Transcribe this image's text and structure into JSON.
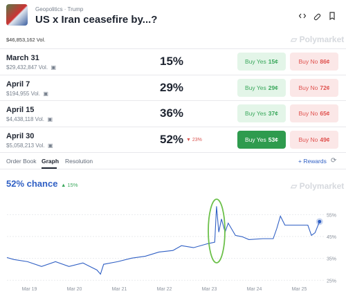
{
  "header": {
    "category": "Geopolitics",
    "subcategory": "Trump",
    "title": "US x Iran ceasefire by...?",
    "volume": "$46,853,162 Vol.",
    "brand": "Polymarket"
  },
  "markets": [
    {
      "label": "March 31",
      "volume": "$29,432,847 Vol.",
      "chance": "15%",
      "buy_yes": "Buy Yes",
      "yes_price": "15¢",
      "buy_no": "Buy No",
      "no_price": "86¢"
    },
    {
      "label": "April 7",
      "volume": "$194,955 Vol.",
      "chance": "29%",
      "buy_yes": "Buy Yes",
      "yes_price": "29¢",
      "buy_no": "Buy No",
      "no_price": "72¢"
    },
    {
      "label": "April 15",
      "volume": "$4,438,118 Vol.",
      "chance": "36%",
      "buy_yes": "Buy Yes",
      "yes_price": "37¢",
      "buy_no": "Buy No",
      "no_price": "65¢"
    },
    {
      "label": "April 30",
      "volume": "$5,058,213 Vol.",
      "chance": "52%",
      "change": "▼ 23%",
      "buy_yes": "Buy Yes",
      "yes_price": "53¢",
      "buy_no": "Buy No",
      "no_price": "49¢",
      "selected": true
    }
  ],
  "tabs": [
    "Order Book",
    "Graph",
    "Resolution"
  ],
  "active_tab": 1,
  "rewards": "+ Rewards",
  "chart_data": {
    "type": "line",
    "title": "52% chance",
    "change": "▲ 15%",
    "brand": "Polymarket",
    "x": [
      18.5,
      18.65,
      18.96,
      19.27,
      19.58,
      19.88,
      20.19,
      20.5,
      20.58,
      20.65,
      20.96,
      21.27,
      21.58,
      21.88,
      22.19,
      22.38,
      22.65,
      22.96,
      23.12,
      23.16,
      23.21,
      23.27,
      23.35,
      23.42,
      23.58,
      23.73,
      23.88,
      24.19,
      24.42,
      24.5,
      24.58,
      24.68,
      24.96,
      25.19,
      25.27,
      25.35,
      25.45
    ],
    "series": [
      {
        "name": "April 30",
        "color": "#2f5fc4",
        "values": [
          35.4,
          34.5,
          33.5,
          31.3,
          33.5,
          31.3,
          32.9,
          29.7,
          27.8,
          32.3,
          33.5,
          35.1,
          36.0,
          37.9,
          38.6,
          40.8,
          39.9,
          41.7,
          42.4,
          58.8,
          47.0,
          53.0,
          47.0,
          51.1,
          45.5,
          44.9,
          43.6,
          44.0,
          44.0,
          48.7,
          54.3,
          50.2,
          50.2,
          50.2,
          45.5,
          46.7,
          51.8
        ]
      }
    ],
    "xlim": [
      18.5,
      25.5
    ],
    "xticks": [
      {
        "value": 19,
        "label": "Mar 19"
      },
      {
        "value": 20,
        "label": "Mar 20"
      },
      {
        "value": 21,
        "label": "Mar 21"
      },
      {
        "value": 22,
        "label": "Mar 22"
      },
      {
        "value": 23,
        "label": "Mar 23"
      },
      {
        "value": 24,
        "label": "Mar 24"
      },
      {
        "value": 25,
        "label": "Mar 25"
      }
    ],
    "ylim": [
      23.5,
      63
    ],
    "yticks": [
      {
        "value": 25,
        "label": "25%"
      },
      {
        "value": 35,
        "label": "35%"
      },
      {
        "value": 45,
        "label": "45%"
      },
      {
        "value": 55,
        "label": "55%"
      }
    ],
    "grid": true
  }
}
